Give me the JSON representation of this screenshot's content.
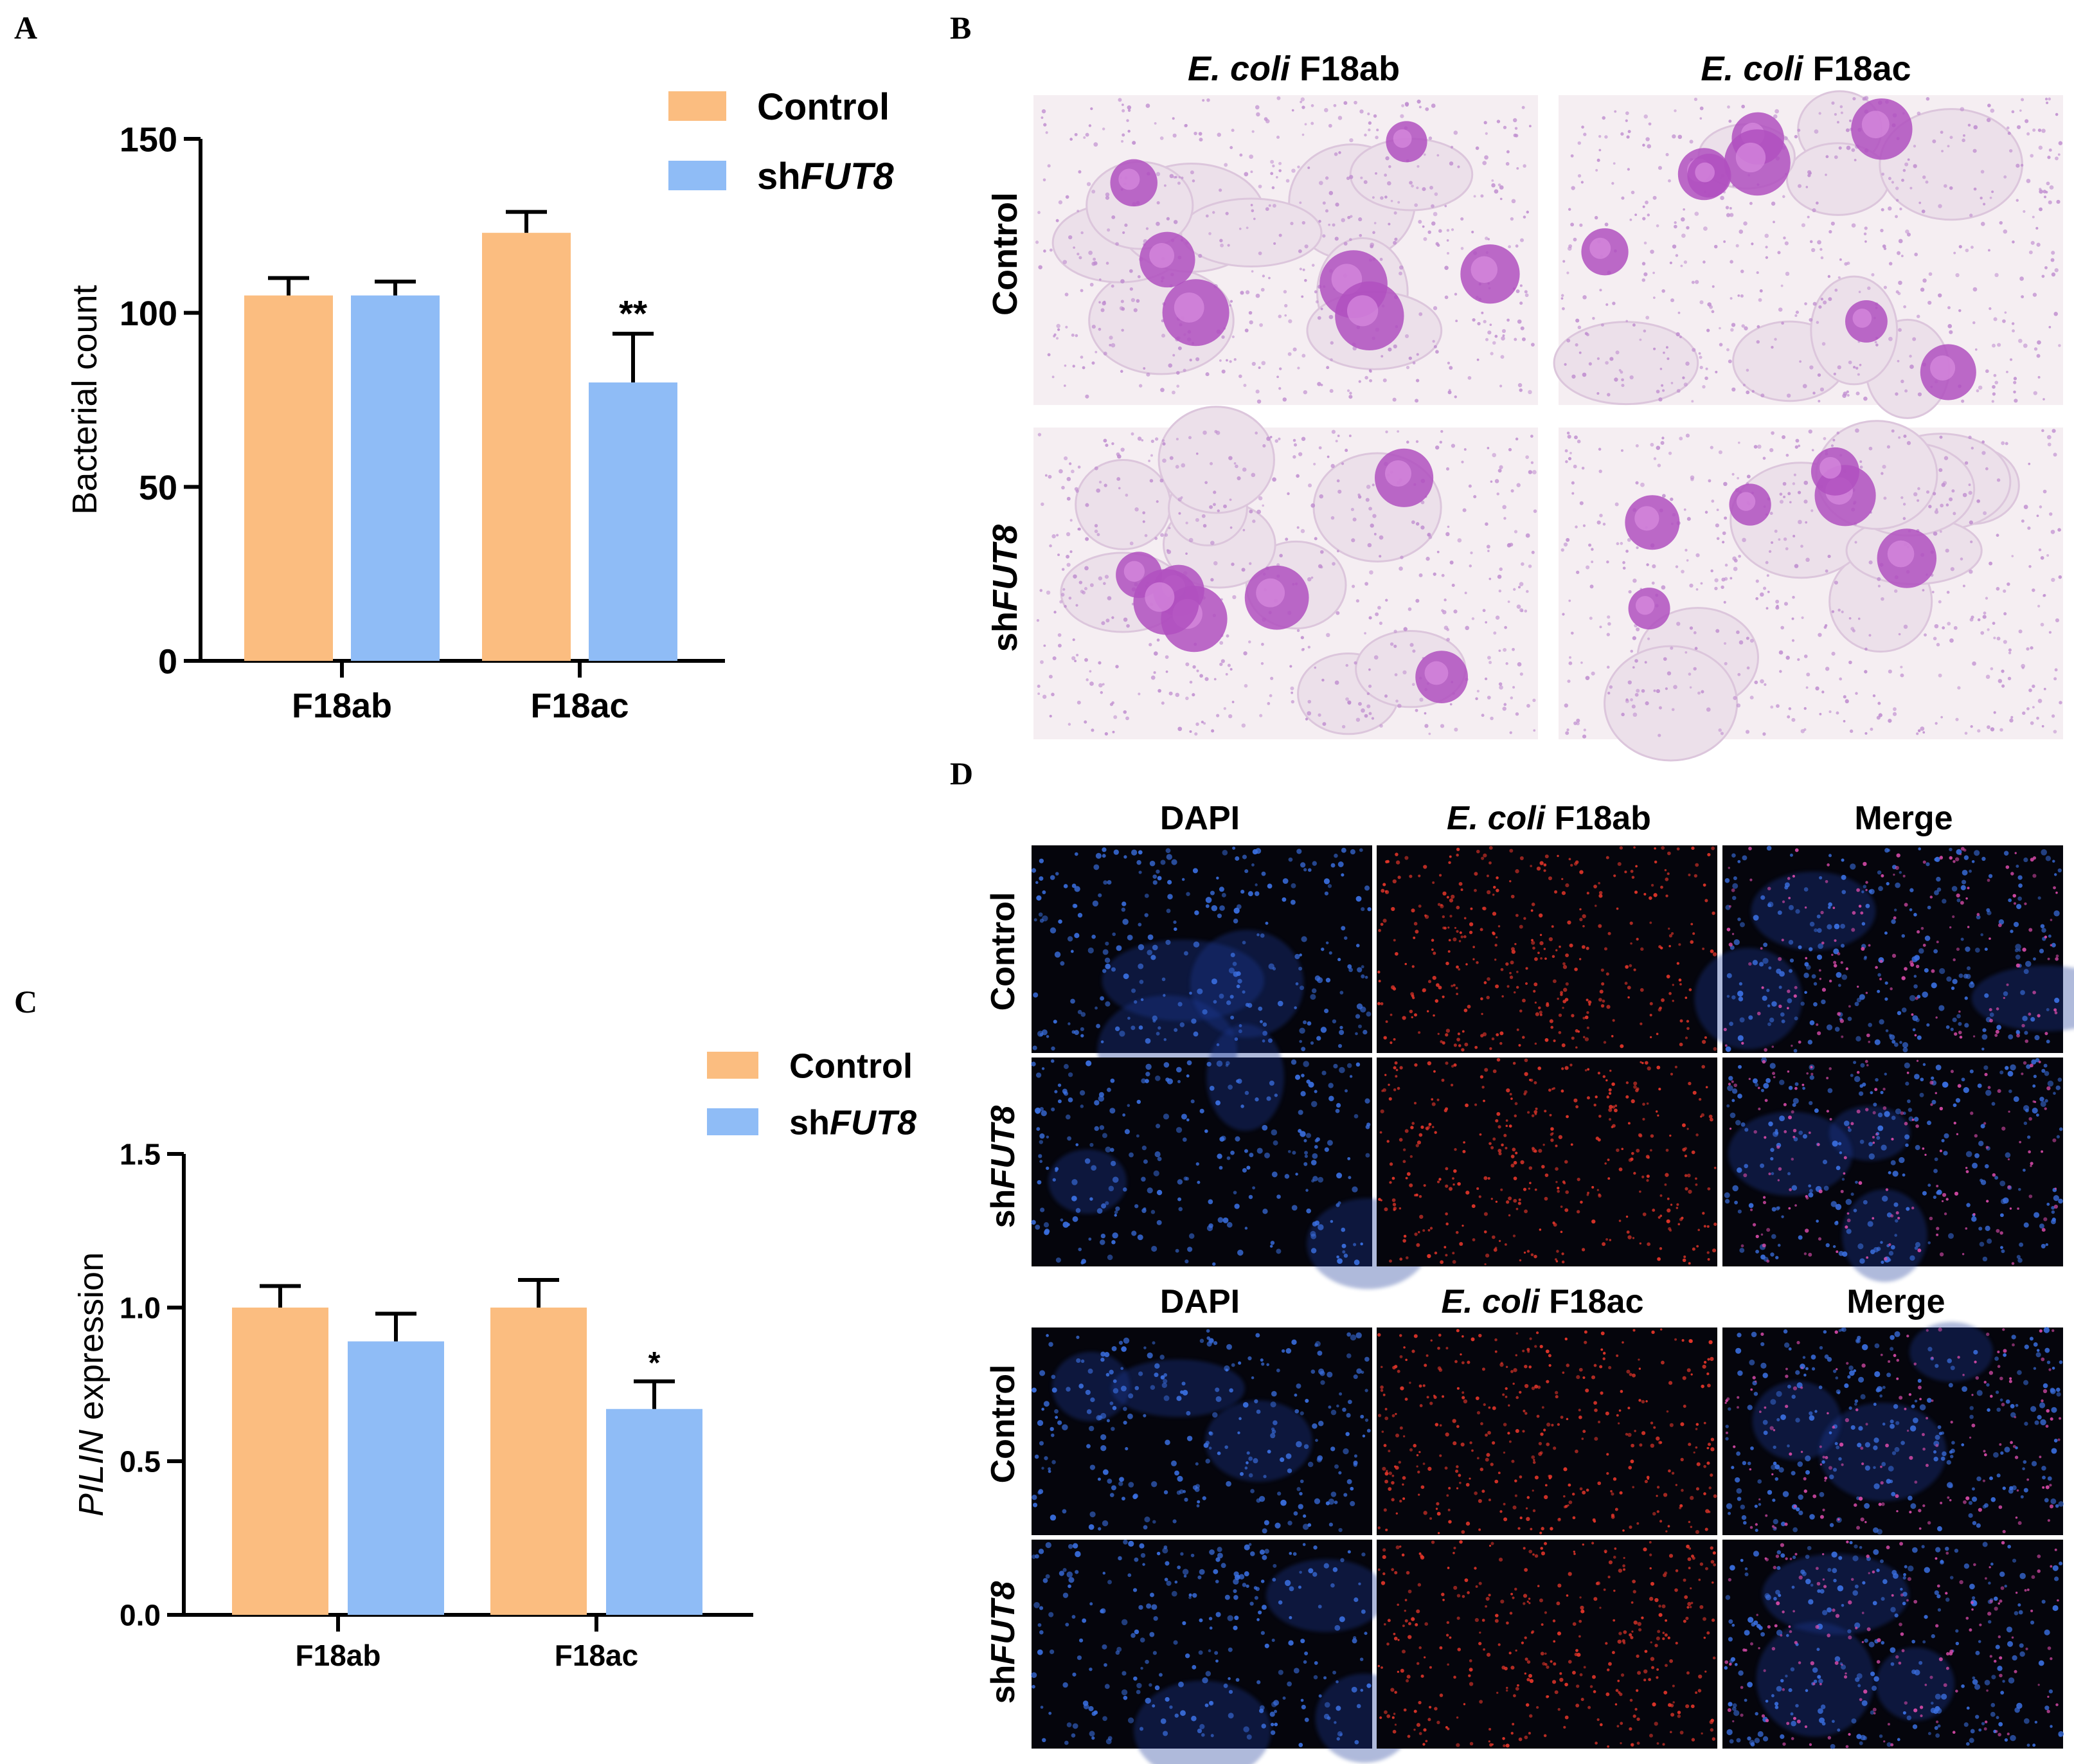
{
  "panel_letters": {
    "a": "A",
    "b": "B",
    "c": "C",
    "d": "D"
  },
  "colors": {
    "control": "#fbbd80",
    "shfut8": "#8fbcf6",
    "axis": "#000000",
    "he_background": "#f5eef2",
    "he_nucleus": "#b050c0",
    "dapi": "#3a6fe0",
    "ecoli": "#e6362a",
    "fluor_background": "#05050c"
  },
  "panel_b": {
    "col_headers": [
      {
        "italic": "E. coli",
        "plain": " F18ab"
      },
      {
        "italic": "E. coli",
        "plain": " F18ac"
      }
    ],
    "row_labels": [
      {
        "plain": "Control",
        "italic": ""
      },
      {
        "plain": "sh",
        "italic": "FUT8"
      }
    ]
  },
  "panel_d": {
    "top": {
      "col_headers": [
        {
          "italic": "",
          "plain": "DAPI"
        },
        {
          "italic": "E. coli",
          "plain": " F18ab"
        },
        {
          "italic": "",
          "plain": "Merge"
        }
      ]
    },
    "bottom": {
      "col_headers": [
        {
          "italic": "",
          "plain": "DAPI"
        },
        {
          "italic": "E. coli",
          "plain": " F18ac"
        },
        {
          "italic": "",
          "plain": "Merge"
        }
      ]
    },
    "row_labels": [
      {
        "plain": "Control",
        "italic": ""
      },
      {
        "plain": "sh",
        "italic": "FUT8"
      }
    ]
  },
  "chart_data": [
    {
      "panel": "A",
      "type": "bar",
      "categories": [
        "F18ab",
        "F18ac"
      ],
      "series": [
        {
          "name": "Control",
          "values": [
            105,
            123
          ],
          "errors": [
            5,
            6
          ],
          "color": "#fbbd80"
        },
        {
          "name": "shFUT8",
          "name_plain": "sh",
          "name_italic": "FUT8",
          "values": [
            105,
            80
          ],
          "errors": [
            4,
            14
          ],
          "color": "#8fbcf6"
        }
      ],
      "significance": [
        {
          "category": "F18ac",
          "series": "shFUT8",
          "label": "**"
        }
      ],
      "ylabel": "Bacterial count",
      "ylabel_italic": "",
      "ylim": [
        0,
        150
      ],
      "yticks": [
        0,
        50,
        100,
        150
      ],
      "yticklabels": [
        "0",
        "50",
        "100",
        "150"
      ],
      "grid": false,
      "legend": "top-right"
    },
    {
      "panel": "C",
      "type": "bar",
      "categories": [
        "F18ab",
        "F18ac"
      ],
      "series": [
        {
          "name": "Control",
          "values": [
            1.0,
            1.0
          ],
          "errors": [
            0.07,
            0.09
          ],
          "color": "#fbbd80"
        },
        {
          "name": "shFUT8",
          "name_plain": "sh",
          "name_italic": "FUT8",
          "values": [
            0.89,
            0.67
          ],
          "errors": [
            0.09,
            0.09
          ],
          "color": "#8fbcf6"
        }
      ],
      "significance": [
        {
          "category": "F18ac",
          "series": "shFUT8",
          "label": "*"
        }
      ],
      "ylabel": " expression",
      "ylabel_italic": "PILIN",
      "ylim": [
        0,
        1.5
      ],
      "yticks": [
        0,
        0.5,
        1.0,
        1.5
      ],
      "yticklabels": [
        "0.0",
        "0.5",
        "1.0",
        "1.5"
      ],
      "grid": false,
      "legend": "top-right"
    }
  ]
}
